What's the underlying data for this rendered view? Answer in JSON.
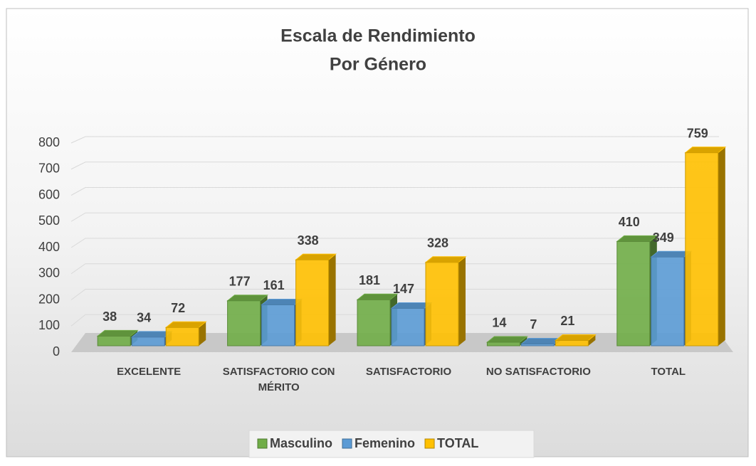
{
  "chart_data": {
    "type": "bar3d",
    "title": "Escala de Rendimiento",
    "subtitle": "Por Género",
    "categories": [
      "EXCELENTE",
      "SATISFACTORIO CON MÉRITO",
      "SATISFACTORIO",
      "NO SATISFACTORIO",
      "TOTAL"
    ],
    "series": [
      {
        "name": "Masculino",
        "color": "#70ad47",
        "values": [
          38,
          177,
          181,
          14,
          410
        ]
      },
      {
        "name": "Femenino",
        "color": "#5b9bd5",
        "values": [
          34,
          161,
          147,
          7,
          349
        ]
      },
      {
        "name": "TOTAL",
        "color": "#ffc000",
        "values": [
          72,
          338,
          328,
          21,
          759
        ]
      }
    ],
    "ylim": [
      0,
      800
    ],
    "yticks": [
      0,
      100,
      200,
      300,
      400,
      500,
      600,
      700,
      800
    ],
    "grid": true,
    "legend": "bottom"
  }
}
